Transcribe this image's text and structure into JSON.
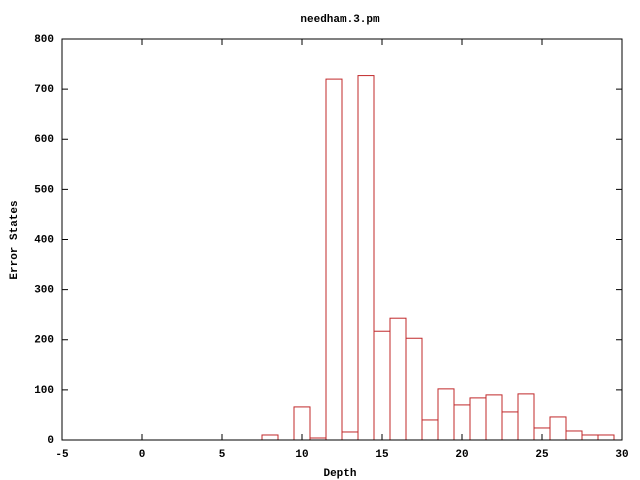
{
  "chart_data": {
    "type": "bar",
    "title": "needham.3.pm",
    "xlabel": "Depth",
    "ylabel": "Error States",
    "x": [
      8,
      10,
      11,
      12,
      13,
      14,
      15,
      16,
      17,
      18,
      19,
      20,
      21,
      22,
      23,
      24,
      25,
      26,
      27,
      28,
      29
    ],
    "values": [
      10,
      66,
      4,
      720,
      16,
      727,
      217,
      243,
      203,
      40,
      102,
      70,
      84,
      90,
      56,
      92,
      24,
      46,
      18,
      10,
      10
    ],
    "color": "#c0282a",
    "xlim": [
      -5,
      30
    ],
    "xticks": [
      -5,
      0,
      5,
      10,
      15,
      20,
      25,
      30
    ],
    "ylim": [
      0,
      800
    ],
    "yticks": [
      0,
      100,
      200,
      300,
      400,
      500,
      600,
      700,
      800
    ]
  }
}
